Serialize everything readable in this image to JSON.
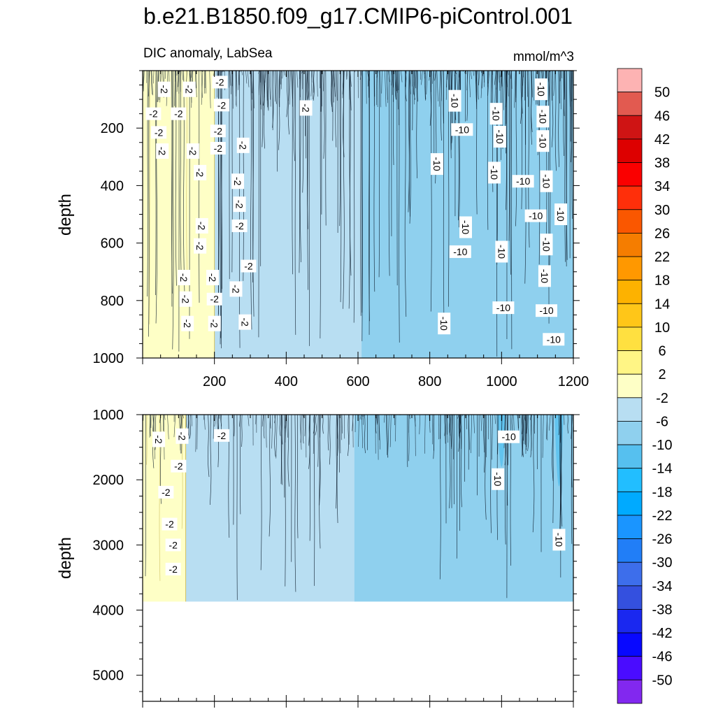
{
  "title": "b.e21.B1850.f09_g17.CMIP6-piControl.001",
  "subtitle_left": "DIC anomaly, LabSea",
  "units": "mmol/m^3",
  "colors": {
    "yellow_light": "#feffc6",
    "yellow_line": "#cfc060",
    "blue_1": "#b8def2",
    "blue_2": "#8fd0ee",
    "blue_3": "#56c0ef",
    "line_dark": "#0b1a2a"
  },
  "chart_data": [
    {
      "type": "heatmap",
      "panel": "upper",
      "subtitle": "DIC anomaly, LabSea",
      "units": "mmol/m^3",
      "ylabel": "depth",
      "xlabel": "",
      "xlim": [
        0,
        1200
      ],
      "ylim": [
        1000,
        0
      ],
      "xticks": [
        200,
        400,
        600,
        800,
        1000,
        1200
      ],
      "yticks": [
        200,
        400,
        600,
        800,
        1000
      ],
      "regions": [
        {
          "level": "-2 to 2",
          "x": [
            0,
            200
          ],
          "color": "#feffc6"
        },
        {
          "level": "-6 to -2",
          "x": [
            200,
            610
          ],
          "color": "#b8def2"
        },
        {
          "level": "-10 to -6",
          "x": [
            610,
            1200
          ],
          "color": "#8fd0ee"
        }
      ],
      "contour_labels": [
        {
          "text": "-2",
          "x": 60,
          "y": 65
        },
        {
          "text": "-2",
          "x": 130,
          "y": 65
        },
        {
          "text": "-2",
          "x": 215,
          "y": 40
        },
        {
          "text": "-2",
          "x": 30,
          "y": 150
        },
        {
          "text": "-2",
          "x": 100,
          "y": 150
        },
        {
          "text": "-2",
          "x": 220,
          "y": 120
        },
        {
          "text": "-2",
          "x": 45,
          "y": 215
        },
        {
          "text": "-2",
          "x": 210,
          "y": 210
        },
        {
          "text": "-2",
          "x": 55,
          "y": 280
        },
        {
          "text": "-2",
          "x": 140,
          "y": 280
        },
        {
          "text": "-2",
          "x": 210,
          "y": 270
        },
        {
          "text": "-2",
          "x": 280,
          "y": 260
        },
        {
          "text": "-2",
          "x": 455,
          "y": 130
        },
        {
          "text": "-2",
          "x": 160,
          "y": 355
        },
        {
          "text": "-2",
          "x": 265,
          "y": 385
        },
        {
          "text": "-2",
          "x": 270,
          "y": 465
        },
        {
          "text": "-2",
          "x": 165,
          "y": 540
        },
        {
          "text": "-2",
          "x": 270,
          "y": 540
        },
        {
          "text": "-2",
          "x": 160,
          "y": 610
        },
        {
          "text": "-2",
          "x": 295,
          "y": 680
        },
        {
          "text": "-2",
          "x": 115,
          "y": 720
        },
        {
          "text": "-2",
          "x": 195,
          "y": 720
        },
        {
          "text": "-2",
          "x": 260,
          "y": 760
        },
        {
          "text": "-2",
          "x": 120,
          "y": 795
        },
        {
          "text": "-2",
          "x": 200,
          "y": 795
        },
        {
          "text": "-2",
          "x": 125,
          "y": 880
        },
        {
          "text": "-2",
          "x": 200,
          "y": 880
        },
        {
          "text": "-2",
          "x": 285,
          "y": 875
        },
        {
          "text": "-10",
          "x": 870,
          "y": 105
        },
        {
          "text": "-10",
          "x": 1110,
          "y": 65
        },
        {
          "text": "-10",
          "x": 985,
          "y": 150
        },
        {
          "text": "-10",
          "x": 1115,
          "y": 160
        },
        {
          "text": "-10",
          "x": 890,
          "y": 205
        },
        {
          "text": "-10",
          "x": 995,
          "y": 230
        },
        {
          "text": "-10",
          "x": 1115,
          "y": 245
        },
        {
          "text": "-10",
          "x": 820,
          "y": 325
        },
        {
          "text": "-10",
          "x": 980,
          "y": 355
        },
        {
          "text": "-10",
          "x": 1060,
          "y": 385
        },
        {
          "text": "-10",
          "x": 1125,
          "y": 385
        },
        {
          "text": "-10",
          "x": 1165,
          "y": 500
        },
        {
          "text": "-10",
          "x": 1095,
          "y": 505
        },
        {
          "text": "-10",
          "x": 900,
          "y": 545
        },
        {
          "text": "-10",
          "x": 1125,
          "y": 605
        },
        {
          "text": "-10",
          "x": 885,
          "y": 630
        },
        {
          "text": "-10",
          "x": 1000,
          "y": 630
        },
        {
          "text": "-10",
          "x": 1120,
          "y": 715
        },
        {
          "text": "-10",
          "x": 1005,
          "y": 825
        },
        {
          "text": "-10",
          "x": 1125,
          "y": 835
        },
        {
          "text": "-10",
          "x": 840,
          "y": 880
        },
        {
          "text": "-10",
          "x": 1145,
          "y": 935
        }
      ]
    },
    {
      "type": "heatmap",
      "panel": "lower",
      "ylabel": "depth",
      "xlabel": "",
      "xlim": [
        0,
        1200
      ],
      "ylim": [
        5400,
        1000
      ],
      "xticks": [
        200,
        400,
        600,
        800,
        1000,
        1200
      ],
      "yticks": [
        1000,
        2000,
        3000,
        4000,
        5000
      ],
      "bottom_depth": 3870,
      "regions": [
        {
          "level": "-2 to 2",
          "x": [
            0,
            120
          ],
          "color": "#feffc6"
        },
        {
          "level": "-6 to -2",
          "x": [
            120,
            590
          ],
          "color": "#b8def2"
        },
        {
          "level": "-10 to -6",
          "x": [
            590,
            1200
          ],
          "color": "#8fd0ee"
        }
      ],
      "contour_labels": [
        {
          "text": "-2",
          "x": 45,
          "y": 1380
        },
        {
          "text": "-2",
          "x": 110,
          "y": 1330
        },
        {
          "text": "-2",
          "x": 220,
          "y": 1320
        },
        {
          "text": "-2",
          "x": 100,
          "y": 1790
        },
        {
          "text": "-2",
          "x": 65,
          "y": 2190
        },
        {
          "text": "-2",
          "x": 75,
          "y": 2680
        },
        {
          "text": "-2",
          "x": 85,
          "y": 3000
        },
        {
          "text": "-2",
          "x": 85,
          "y": 3370
        },
        {
          "text": "-10",
          "x": 1020,
          "y": 1340
        },
        {
          "text": "-10",
          "x": 990,
          "y": 1990
        },
        {
          "text": "-10",
          "x": 1160,
          "y": 2920
        }
      ]
    }
  ],
  "colorbar": {
    "labels": [
      "50",
      "46",
      "42",
      "38",
      "34",
      "30",
      "26",
      "22",
      "18",
      "14",
      "10",
      "6",
      "2",
      "-2",
      "-6",
      "-10",
      "-14",
      "-18",
      "-22",
      "-26",
      "-30",
      "-34",
      "-38",
      "-42",
      "-46",
      "-50"
    ],
    "colors": [
      "#fdb3b3",
      "#e25a50",
      "#cf1414",
      "#dd0000",
      "#fa0000",
      "#ff2f0a",
      "#fa5700",
      "#f57d00",
      "#ff9800",
      "#fdb200",
      "#ffc618",
      "#ffe040",
      "#fff585",
      "#feffc6",
      "#b8def2",
      "#8fd0ee",
      "#56c0ef",
      "#22beff",
      "#00aaff",
      "#1a95ff",
      "#217ef7",
      "#3d6eeb",
      "#3450df",
      "#1a28f0",
      "#0808ff",
      "#4a0cff",
      "#8228ef"
    ]
  }
}
